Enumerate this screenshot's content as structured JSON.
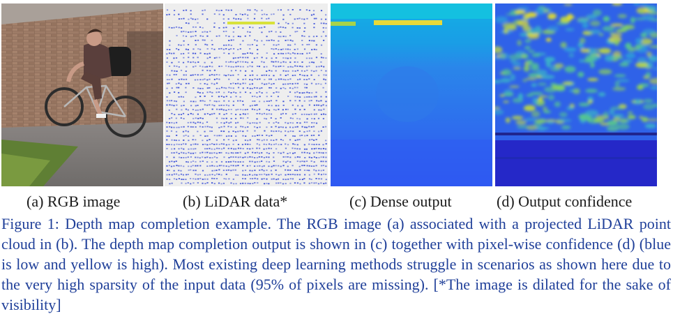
{
  "panels": [
    {
      "id": "a",
      "label": "(a) RGB image"
    },
    {
      "id": "b",
      "label": "(b) LiDAR data*"
    },
    {
      "id": "c",
      "label": "(c) Dense output"
    },
    {
      "id": "d",
      "label": "(d) Output confidence"
    }
  ],
  "caption": {
    "prefix": "Figure 1:",
    "text": "Depth map completion example. The RGB image (a) associated with a projected LiDAR point cloud in (b). The depth map completion output is shown in (c) together with pixel-wise confidence (d) (blue is low and yellow is high). Most existing deep learning methods struggle in scenarios as shown here due to the very high sparsity of the input data (95% of pixels are missing). [*The image is dilated for the sake of visibility]"
  },
  "colors": {
    "caption_text": "#1f3f99",
    "lidar_points": "#3a4fd8",
    "depth_near": "#2f5bf0",
    "depth_far": "#0fb4e8",
    "confidence_low": "#2b2fd6",
    "confidence_high": "#f2e21a"
  }
}
